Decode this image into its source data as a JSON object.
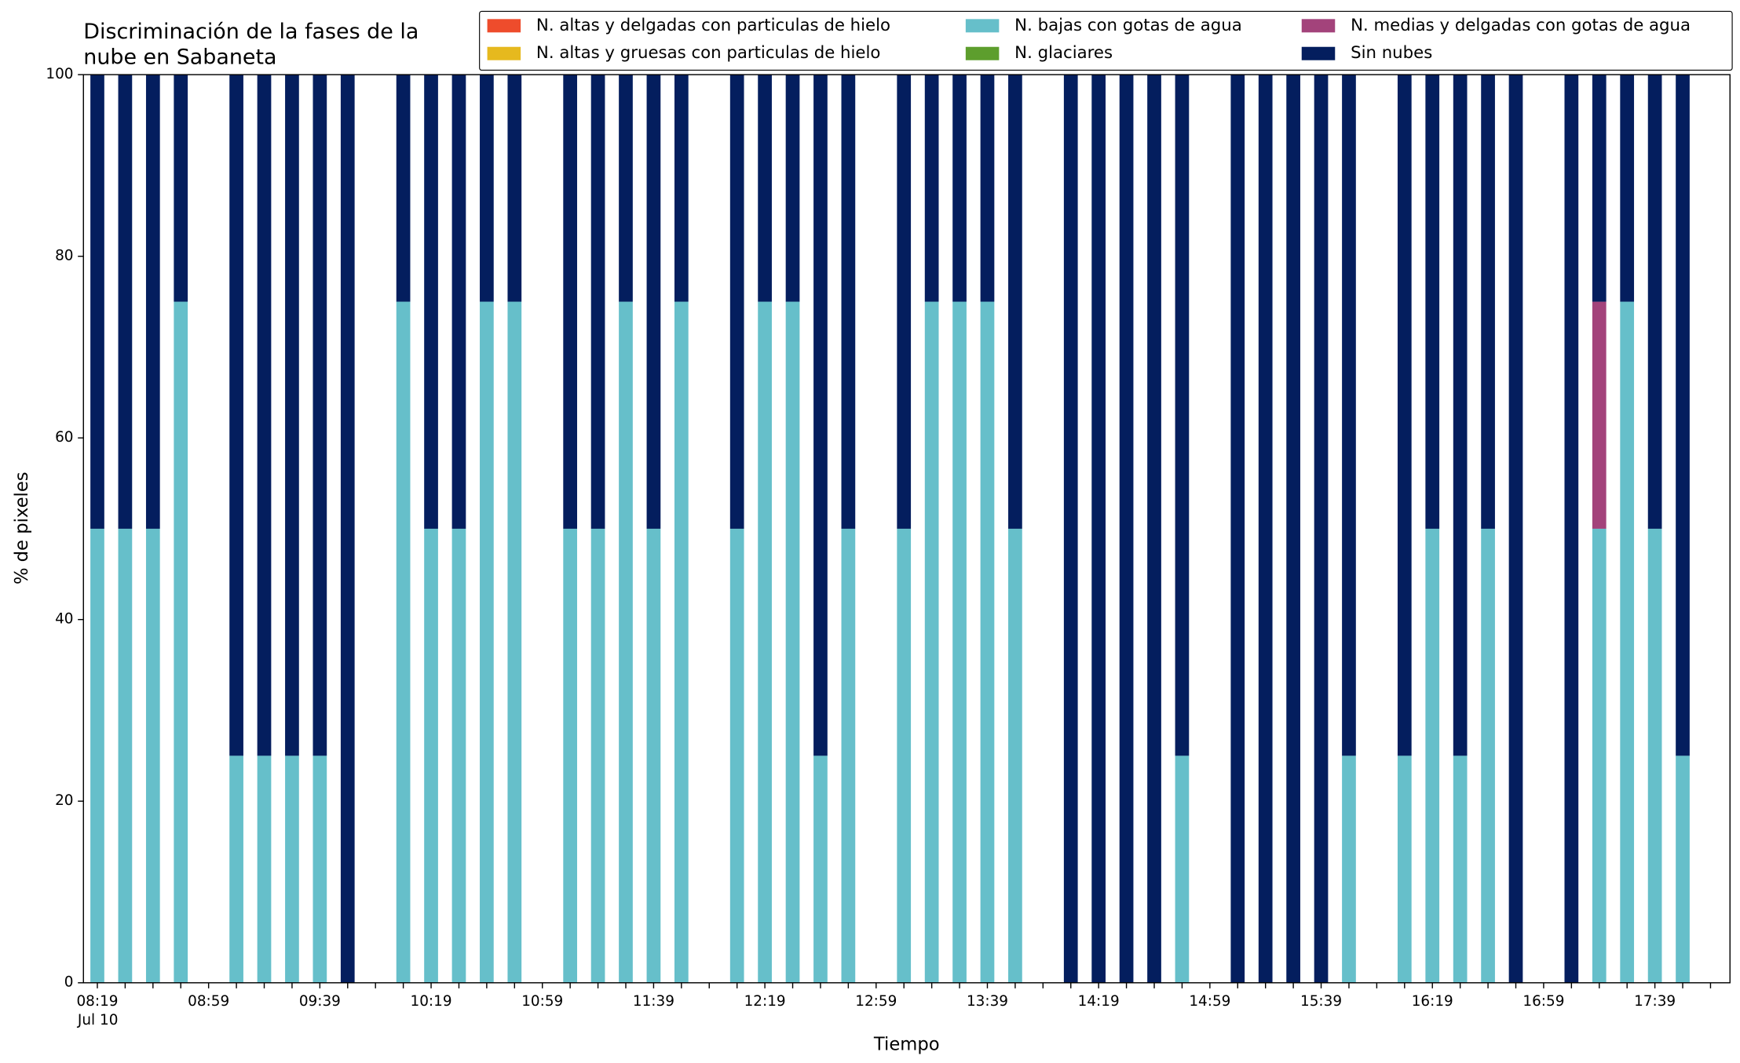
{
  "chart_data": {
    "type": "stacked_bar",
    "title": "Discriminación de la fases de la",
    "title_line2": "nube en Sabaneta",
    "x_label": "Tiempo",
    "y_label": "% de pixeles",
    "x_date_label": "Jul 10",
    "categories": [
      "08:19",
      null,
      null,
      null,
      "08:59",
      null,
      null,
      null,
      "09:39",
      null,
      null,
      null,
      "10:19",
      null,
      null,
      null,
      "10:59",
      null,
      null,
      null,
      "11:39",
      null,
      null,
      null,
      "12:19",
      null,
      null,
      null,
      "12:59",
      null,
      null,
      null,
      "13:39",
      null,
      null,
      null,
      "14:19",
      null,
      null,
      null,
      "14:59",
      null,
      null,
      null,
      "15:39",
      null,
      null,
      null,
      "16:19",
      null,
      null,
      null,
      "16:59",
      null,
      null,
      null,
      "17:39",
      null,
      null
    ],
    "ylim": [
      0,
      100
    ],
    "yticks": [
      0,
      20,
      40,
      60,
      80,
      100
    ],
    "legend": "top-right",
    "series": [
      {
        "name": "N. altas y delgadas con particulas de hielo",
        "color": "#ee4c2c",
        "values": [
          0,
          0,
          0,
          0,
          null,
          0,
          0,
          0,
          0,
          0,
          null,
          0,
          0,
          0,
          0,
          0,
          null,
          0,
          0,
          0,
          0,
          0,
          null,
          0,
          0,
          0,
          0,
          0,
          null,
          0,
          0,
          0,
          0,
          0,
          null,
          0,
          0,
          0,
          0,
          0,
          null,
          0,
          0,
          0,
          0,
          0,
          null,
          0,
          0,
          0,
          0,
          0,
          null,
          0,
          0,
          0,
          0,
          0,
          null
        ]
      },
      {
        "name": "N. altas y gruesas con particulas de hielo",
        "color": "#e6b91e",
        "values": [
          0,
          0,
          0,
          0,
          null,
          0,
          0,
          0,
          0,
          0,
          null,
          0,
          0,
          0,
          0,
          0,
          null,
          0,
          0,
          0,
          0,
          0,
          null,
          0,
          0,
          0,
          0,
          0,
          null,
          0,
          0,
          0,
          0,
          0,
          null,
          0,
          0,
          0,
          0,
          0,
          null,
          0,
          0,
          0,
          0,
          0,
          null,
          0,
          0,
          0,
          0,
          0,
          null,
          0,
          0,
          0,
          0,
          0,
          null
        ]
      },
      {
        "name": "N. bajas con gotas de agua",
        "color": "#66bfca",
        "values": [
          50,
          50,
          50,
          75,
          null,
          25,
          25,
          25,
          25,
          0,
          null,
          75,
          50,
          50,
          75,
          75,
          null,
          50,
          50,
          75,
          50,
          75,
          null,
          50,
          75,
          75,
          25,
          50,
          null,
          50,
          75,
          75,
          75,
          50,
          null,
          0,
          0,
          0,
          0,
          25,
          null,
          0,
          0,
          0,
          0,
          25,
          null,
          25,
          50,
          25,
          50,
          0,
          null,
          0,
          50,
          75,
          50,
          25,
          null
        ]
      },
      {
        "name": "N. glaciares",
        "color": "#5d9e2d",
        "values": [
          0,
          0,
          0,
          0,
          null,
          0,
          0,
          0,
          0,
          0,
          null,
          0,
          0,
          0,
          0,
          0,
          null,
          0,
          0,
          0,
          0,
          0,
          null,
          0,
          0,
          0,
          0,
          0,
          null,
          0,
          0,
          0,
          0,
          0,
          null,
          0,
          0,
          0,
          0,
          0,
          null,
          0,
          0,
          0,
          0,
          0,
          null,
          0,
          0,
          0,
          0,
          0,
          null,
          0,
          0,
          0,
          0,
          0,
          null
        ]
      },
      {
        "name": "N. medias y delgadas con gotas de agua",
        "color": "#a3437b",
        "values": [
          0,
          0,
          0,
          0,
          null,
          0,
          0,
          0,
          0,
          0,
          null,
          0,
          0,
          0,
          0,
          0,
          null,
          0,
          0,
          0,
          0,
          0,
          null,
          0,
          0,
          0,
          0,
          0,
          null,
          0,
          0,
          0,
          0,
          0,
          null,
          0,
          0,
          0,
          0,
          0,
          null,
          0,
          0,
          0,
          0,
          0,
          null,
          0,
          0,
          0,
          0,
          0,
          null,
          0,
          25,
          0,
          0,
          0,
          null
        ]
      },
      {
        "name": "Sin nubes",
        "color": "#041e5e",
        "values": [
          50,
          50,
          50,
          25,
          null,
          75,
          75,
          75,
          75,
          100,
          null,
          25,
          50,
          50,
          25,
          25,
          null,
          50,
          50,
          25,
          50,
          25,
          null,
          50,
          25,
          25,
          75,
          50,
          null,
          50,
          25,
          25,
          25,
          50,
          null,
          100,
          100,
          100,
          100,
          75,
          null,
          100,
          100,
          100,
          100,
          75,
          null,
          75,
          50,
          75,
          50,
          100,
          null,
          100,
          25,
          25,
          50,
          75,
          null
        ]
      }
    ]
  }
}
